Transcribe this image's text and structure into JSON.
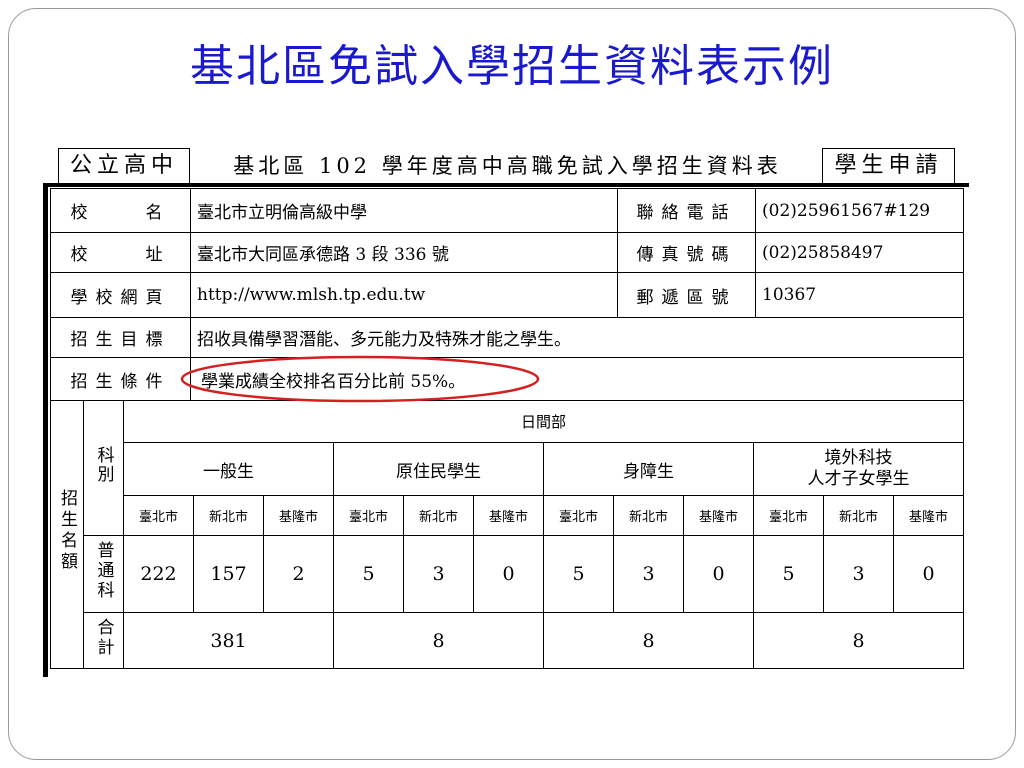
{
  "title": "基北區免試入學招生資料表示例",
  "header": {
    "left_box": "公立高中",
    "middle": "基北區 102 學年度高中高職免試入學招生資料表",
    "right_box": "學生申請"
  },
  "info": {
    "school_name_label": "校　　名",
    "school_name": "臺北市立明倫高級中學",
    "phone_label": "聯絡電話",
    "phone": "(02)25961567#129",
    "address_label": "校　　址",
    "address": "臺北市大同區承德路 3 段 336 號",
    "fax_label": "傳真號碼",
    "fax": "(02)25858497",
    "website_label": "學校網頁",
    "website": "http://www.mlsh.tp.edu.tw",
    "zip_label": "郵遞區號",
    "zip": "10367",
    "goal_label": "招生目標",
    "goal": "招收具備學習潛能、多元能力及特殊才能之學生。",
    "condition_label": "招生條件",
    "condition": "學業成績全校排名百分比前 55%。",
    "highlight_color": "#d42020"
  },
  "quota": {
    "row_label": "招生名額",
    "dept_label": "科別",
    "division": "日間部",
    "groups": [
      "一般生",
      "原住民學生",
      "身障生",
      "境外科技人才子女學生"
    ],
    "group4_line1": "境外科技",
    "group4_line2": "人才子女學生",
    "cities": [
      "臺北市",
      "新北市",
      "基隆市"
    ],
    "program": "普通科",
    "values": [
      "222",
      "157",
      "2",
      "5",
      "3",
      "0",
      "5",
      "3",
      "0",
      "5",
      "3",
      "0"
    ],
    "total_label": "合計",
    "totals": [
      "381",
      "8",
      "8",
      "8"
    ]
  }
}
